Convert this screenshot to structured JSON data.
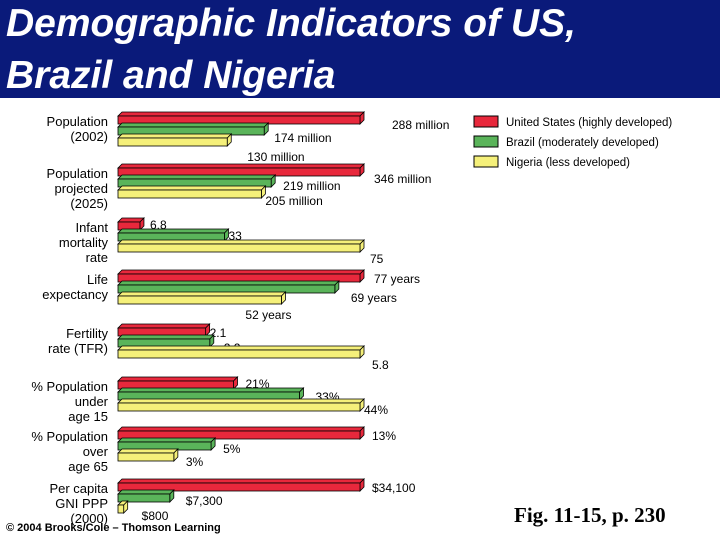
{
  "header": {
    "title_line1": "Demographic Indicators of US,",
    "title_line2": "Brazil and Nigeria"
  },
  "colors": {
    "header_bg": "#0a1a7a",
    "us": "#e8283c",
    "brazil": "#5ab45a",
    "nigeria": "#f5f07a"
  },
  "chart_data": {
    "type": "bar",
    "orientation": "horizontal",
    "grid": false,
    "legend_position": "top-right",
    "series": [
      {
        "name": "United States (highly developed)",
        "key": "us"
      },
      {
        "name": "Brazil (moderately developed)",
        "key": "brazil"
      },
      {
        "name": "Nigeria (less developed)",
        "key": "nigeria"
      }
    ],
    "groups": [
      {
        "label": [
          "Population",
          "(2002)"
        ],
        "scale_max": 288,
        "values": [
          288,
          174,
          130
        ],
        "labels": [
          "288 million",
          "174 million",
          "130 million"
        ]
      },
      {
        "label": [
          "Population",
          "projected",
          "(2025)"
        ],
        "scale_max": 346,
        "values": [
          346,
          219,
          205
        ],
        "labels": [
          "346 million",
          "219 million",
          "205 million"
        ]
      },
      {
        "label": [
          "Infant",
          "mortality",
          "rate"
        ],
        "scale_max": 75,
        "values": [
          6.8,
          33,
          75
        ],
        "labels": [
          "6.8",
          "33",
          "75"
        ]
      },
      {
        "label": [
          "Life",
          "expectancy"
        ],
        "scale_max": 77,
        "values": [
          77,
          69,
          52
        ],
        "labels": [
          "77 years",
          "69 years",
          "52 years"
        ]
      },
      {
        "label": [
          "Fertility",
          "rate (TFR)"
        ],
        "scale_max": 5.8,
        "values": [
          2.1,
          2.2,
          5.8
        ],
        "labels": [
          "2.1",
          "2.2",
          "5.8"
        ]
      },
      {
        "label": [
          "% Population",
          "under",
          "age 15"
        ],
        "scale_max": 44,
        "values": [
          21,
          33,
          44
        ],
        "labels": [
          "21%",
          "33%",
          "44%"
        ]
      },
      {
        "label": [
          "% Population",
          "over",
          "age 65"
        ],
        "scale_max": 13,
        "values": [
          13,
          5,
          3
        ],
        "labels": [
          "13%",
          "5%",
          "3%"
        ]
      },
      {
        "label": [
          "Per capita",
          "GNI PPP",
          "(2000)"
        ],
        "scale_max": 34100,
        "values": [
          34100,
          7300,
          800
        ],
        "labels": [
          "$34,100",
          "$7,300",
          "$800"
        ]
      }
    ]
  },
  "footer": {
    "copyright": "© 2004 Brooks/Cole – Thomson Learning",
    "figure_ref": "Fig. 11-15, p. 230"
  }
}
